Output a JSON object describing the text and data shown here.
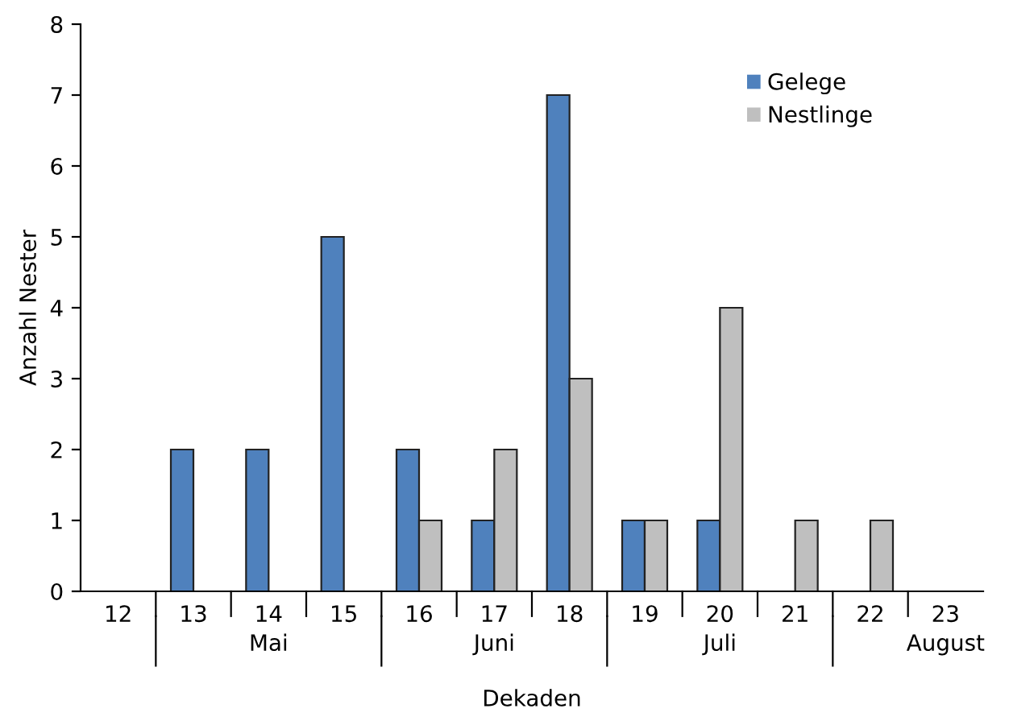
{
  "chart_data": {
    "type": "bar",
    "xlabel": "Dekaden",
    "ylabel": "Anzahl Nester",
    "categories": [
      "12",
      "13",
      "14",
      "15",
      "16",
      "17",
      "18",
      "19",
      "20",
      "21",
      "22",
      "23"
    ],
    "series": [
      {
        "name": "Gelege",
        "color": "#4f81bd",
        "values": [
          0,
          2,
          2,
          5,
          2,
          1,
          7,
          1,
          1,
          0,
          0,
          0
        ]
      },
      {
        "name": "Nestlinge",
        "color": "#bfbfbf",
        "values": [
          0,
          0,
          0,
          0,
          1,
          2,
          3,
          1,
          4,
          1,
          1,
          0
        ]
      }
    ],
    "ylim": [
      0,
      8
    ],
    "yticks": [
      0,
      1,
      2,
      3,
      4,
      5,
      6,
      7,
      8
    ],
    "grid": false,
    "legend": "top right",
    "annotations": [
      "Mai",
      "Juni",
      "Juli",
      "August"
    ]
  }
}
